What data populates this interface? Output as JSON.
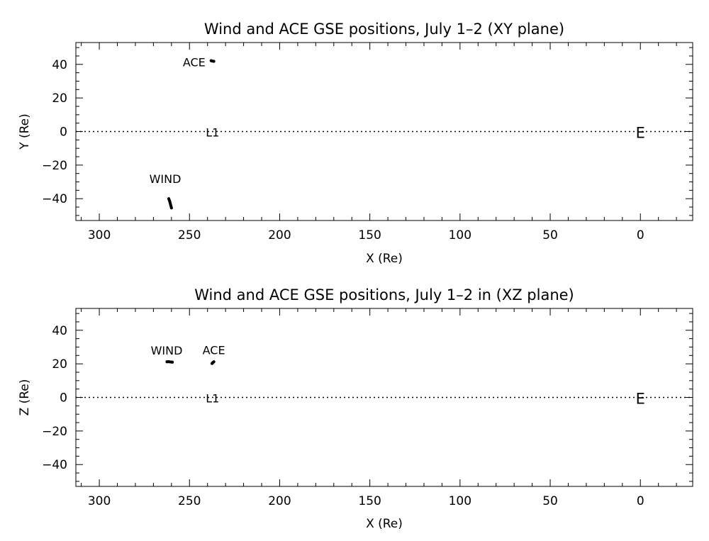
{
  "chart_data": [
    {
      "type": "scatter",
      "title": "Wind and ACE GSE positions, July 1–2 (XY plane)",
      "xlabel": "X (Re)",
      "ylabel": "Y (Re)",
      "xlim": [
        313,
        -29
      ],
      "ylim": [
        -53,
        53
      ],
      "xticks": [
        300,
        250,
        200,
        150,
        100,
        50,
        0
      ],
      "yticks": [
        40,
        20,
        0,
        -20,
        -40
      ],
      "xtick_labels": [
        "300",
        "250",
        "200",
        "150",
        "100",
        "50",
        "0"
      ],
      "ytick_labels": [
        "40",
        "20",
        "0",
        "−20",
        "−40"
      ],
      "grid": false,
      "reference_line": {
        "y": 0,
        "style": "dotted"
      },
      "markers": [
        {
          "label": "L1",
          "x": 238,
          "y": 0
        },
        {
          "label": "E",
          "x": 0,
          "y": 0
        }
      ],
      "series": [
        {
          "name": "ACE",
          "x": [
            236.5,
            237.5,
            238.0
          ],
          "y": [
            41.8,
            42.0,
            42.2
          ]
        },
        {
          "name": "WIND",
          "x": [
            261.5,
            261.0,
            260.5,
            260.0
          ],
          "y": [
            -40.0,
            -41.5,
            -43.5,
            -45.5
          ]
        }
      ]
    },
    {
      "type": "scatter",
      "title": "Wind and ACE GSE positions, July 1–2 in (XZ plane)",
      "xlabel": "X (Re)",
      "ylabel": "Z (Re)",
      "xlim": [
        313,
        -29
      ],
      "ylim": [
        -53,
        53
      ],
      "xticks": [
        300,
        250,
        200,
        150,
        100,
        50,
        0
      ],
      "yticks": [
        40,
        20,
        0,
        -20,
        -40
      ],
      "xtick_labels": [
        "300",
        "250",
        "200",
        "150",
        "100",
        "50",
        "0"
      ],
      "ytick_labels": [
        "40",
        "20",
        "0",
        "−20",
        "−40"
      ],
      "grid": false,
      "reference_line": {
        "y": 0,
        "style": "dotted"
      },
      "markers": [
        {
          "label": "L1",
          "x": 238,
          "y": 0
        },
        {
          "label": "E",
          "x": 0,
          "y": 0
        }
      ],
      "series": [
        {
          "name": "WIND",
          "x": [
            262.5,
            261.5,
            260.5,
            259.5
          ],
          "y": [
            21.2,
            21.3,
            21.1,
            21.0
          ]
        },
        {
          "name": "ACE",
          "x": [
            237.5,
            237.0,
            236.5
          ],
          "y": [
            20.2,
            20.8,
            21.2
          ]
        }
      ]
    }
  ]
}
